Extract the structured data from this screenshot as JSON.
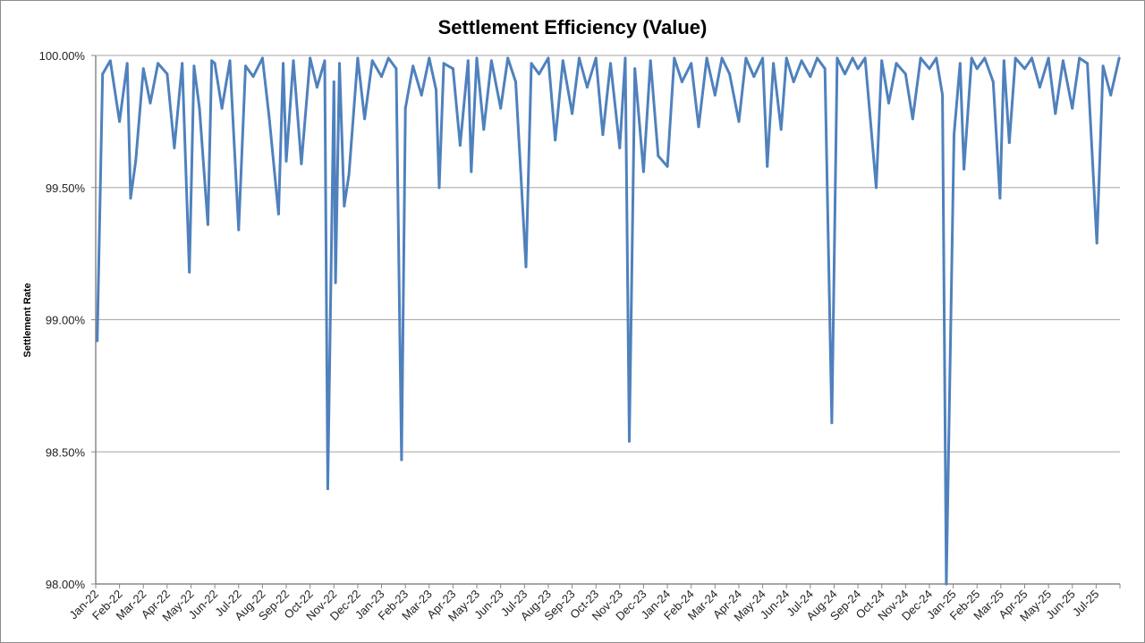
{
  "chart_data": {
    "type": "line",
    "title": "Settlement Efficiency (Value)",
    "xlabel": "",
    "ylabel": "Settlement Rate",
    "ylim": [
      98.0,
      100.0
    ],
    "yticks": [
      "98.00%",
      "98.50%",
      "99.00%",
      "99.50%",
      "100.00%"
    ],
    "ytick_values": [
      98.0,
      98.5,
      99.0,
      99.5,
      100.0
    ],
    "xticks": [
      "Jan-22",
      "Feb-22",
      "Mar-22",
      "Apr-22",
      "May-22",
      "Jun-22",
      "Jul-22",
      "Aug-22",
      "Sep-22",
      "Oct-22",
      "Nov-22",
      "Dec-22",
      "Jan-23",
      "Feb-23",
      "Mar-23",
      "Apr-23",
      "May-23",
      "Jun-23",
      "Jul-23",
      "Aug-23",
      "Sep-23",
      "Oct-23",
      "Nov-23",
      "Dec-23",
      "Jan-24",
      "Feb-24",
      "Mar-24",
      "Apr-24",
      "May-24",
      "Jun-24",
      "Jul-24",
      "Aug-24",
      "Sep-24",
      "Oct-24",
      "Nov-24",
      "Dec-24",
      "Jan-25",
      "Feb-25",
      "Mar-25",
      "Apr-25",
      "May-25",
      "Jun-25",
      "Jul-25"
    ],
    "xlim": [
      "2022-01-01",
      "2025-08-01"
    ],
    "grid": "horizontal",
    "legend": "none",
    "line_color": "#4f81bd",
    "grid_color": "#a6a6a6",
    "series": [
      {
        "points": [
          [
            "2022-01-03",
            98.92
          ],
          [
            "2022-01-10",
            99.93
          ],
          [
            "2022-01-20",
            99.98
          ],
          [
            "2022-02-01",
            99.75
          ],
          [
            "2022-02-10",
            99.97
          ],
          [
            "2022-02-14",
            99.46
          ],
          [
            "2022-02-20",
            99.6
          ],
          [
            "2022-03-01",
            99.95
          ],
          [
            "2022-03-10",
            99.82
          ],
          [
            "2022-03-20",
            99.97
          ],
          [
            "2022-04-01",
            99.93
          ],
          [
            "2022-04-10",
            99.65
          ],
          [
            "2022-04-20",
            99.97
          ],
          [
            "2022-04-29",
            99.18
          ],
          [
            "2022-05-05",
            99.96
          ],
          [
            "2022-05-12",
            99.8
          ],
          [
            "2022-05-23",
            99.36
          ],
          [
            "2022-05-28",
            99.98
          ],
          [
            "2022-06-01",
            99.97
          ],
          [
            "2022-06-10",
            99.8
          ],
          [
            "2022-06-20",
            99.98
          ],
          [
            "2022-07-01",
            99.34
          ],
          [
            "2022-07-10",
            99.96
          ],
          [
            "2022-07-20",
            99.92
          ],
          [
            "2022-08-01",
            99.99
          ],
          [
            "2022-08-10",
            99.76
          ],
          [
            "2022-08-22",
            99.4
          ],
          [
            "2022-08-28",
            99.97
          ],
          [
            "2022-09-01",
            99.6
          ],
          [
            "2022-09-10",
            99.98
          ],
          [
            "2022-09-20",
            99.59
          ],
          [
            "2022-10-01",
            99.99
          ],
          [
            "2022-10-10",
            99.88
          ],
          [
            "2022-10-20",
            99.98
          ],
          [
            "2022-10-24",
            98.36
          ],
          [
            "2022-11-01",
            99.9
          ],
          [
            "2022-11-03",
            99.14
          ],
          [
            "2022-11-08",
            99.97
          ],
          [
            "2022-11-14",
            99.43
          ],
          [
            "2022-11-20",
            99.55
          ],
          [
            "2022-12-01",
            99.99
          ],
          [
            "2022-12-10",
            99.76
          ],
          [
            "2022-12-20",
            99.98
          ],
          [
            "2023-01-01",
            99.92
          ],
          [
            "2023-01-10",
            99.99
          ],
          [
            "2023-01-20",
            99.95
          ],
          [
            "2023-01-27",
            98.47
          ],
          [
            "2023-02-01",
            99.8
          ],
          [
            "2023-02-10",
            99.96
          ],
          [
            "2023-02-20",
            99.85
          ],
          [
            "2023-03-01",
            99.99
          ],
          [
            "2023-03-10",
            99.87
          ],
          [
            "2023-03-14",
            99.5
          ],
          [
            "2023-03-20",
            99.97
          ],
          [
            "2023-04-01",
            99.95
          ],
          [
            "2023-04-10",
            99.66
          ],
          [
            "2023-04-20",
            99.98
          ],
          [
            "2023-04-24",
            99.56
          ],
          [
            "2023-05-01",
            99.99
          ],
          [
            "2023-05-10",
            99.72
          ],
          [
            "2023-05-20",
            99.98
          ],
          [
            "2023-06-01",
            99.8
          ],
          [
            "2023-06-10",
            99.99
          ],
          [
            "2023-06-20",
            99.9
          ],
          [
            "2023-07-03",
            99.2
          ],
          [
            "2023-07-10",
            99.97
          ],
          [
            "2023-07-20",
            99.93
          ],
          [
            "2023-08-01",
            99.99
          ],
          [
            "2023-08-10",
            99.68
          ],
          [
            "2023-08-20",
            99.98
          ],
          [
            "2023-09-01",
            99.78
          ],
          [
            "2023-09-10",
            99.99
          ],
          [
            "2023-09-20",
            99.88
          ],
          [
            "2023-10-01",
            99.99
          ],
          [
            "2023-10-10",
            99.7
          ],
          [
            "2023-10-20",
            99.97
          ],
          [
            "2023-11-01",
            99.65
          ],
          [
            "2023-11-08",
            99.99
          ],
          [
            "2023-11-13",
            98.54
          ],
          [
            "2023-11-20",
            99.95
          ],
          [
            "2023-12-01",
            99.56
          ],
          [
            "2023-12-10",
            99.98
          ],
          [
            "2023-12-20",
            99.62
          ],
          [
            "2024-01-01",
            99.58
          ],
          [
            "2024-01-10",
            99.99
          ],
          [
            "2024-01-20",
            99.9
          ],
          [
            "2024-02-01",
            99.97
          ],
          [
            "2024-02-10",
            99.73
          ],
          [
            "2024-02-20",
            99.99
          ],
          [
            "2024-03-01",
            99.85
          ],
          [
            "2024-03-10",
            99.99
          ],
          [
            "2024-03-20",
            99.93
          ],
          [
            "2024-04-01",
            99.75
          ],
          [
            "2024-04-10",
            99.99
          ],
          [
            "2024-04-20",
            99.92
          ],
          [
            "2024-05-01",
            99.99
          ],
          [
            "2024-05-07",
            99.58
          ],
          [
            "2024-05-15",
            99.97
          ],
          [
            "2024-05-25",
            99.72
          ],
          [
            "2024-06-01",
            99.99
          ],
          [
            "2024-06-10",
            99.9
          ],
          [
            "2024-06-20",
            99.98
          ],
          [
            "2024-07-01",
            99.92
          ],
          [
            "2024-07-10",
            99.99
          ],
          [
            "2024-07-20",
            99.95
          ],
          [
            "2024-07-29",
            98.61
          ],
          [
            "2024-08-05",
            99.99
          ],
          [
            "2024-08-15",
            99.93
          ],
          [
            "2024-08-25",
            99.99
          ],
          [
            "2024-09-01",
            99.95
          ],
          [
            "2024-09-10",
            99.99
          ],
          [
            "2024-09-24",
            99.5
          ],
          [
            "2024-10-01",
            99.98
          ],
          [
            "2024-10-10",
            99.82
          ],
          [
            "2024-10-20",
            99.97
          ],
          [
            "2024-11-01",
            99.93
          ],
          [
            "2024-11-10",
            99.76
          ],
          [
            "2024-11-20",
            99.99
          ],
          [
            "2024-12-01",
            99.95
          ],
          [
            "2024-12-10",
            99.99
          ],
          [
            "2024-12-18",
            99.85
          ],
          [
            "2024-12-23",
            98.0
          ],
          [
            "2025-01-02",
            99.7
          ],
          [
            "2025-01-10",
            99.97
          ],
          [
            "2025-01-15",
            99.57
          ],
          [
            "2025-01-25",
            99.99
          ],
          [
            "2025-02-01",
            99.95
          ],
          [
            "2025-02-10",
            99.99
          ],
          [
            "2025-02-20",
            99.9
          ],
          [
            "2025-02-28",
            99.46
          ],
          [
            "2025-03-05",
            99.98
          ],
          [
            "2025-03-12",
            99.67
          ],
          [
            "2025-03-20",
            99.99
          ],
          [
            "2025-04-01",
            99.95
          ],
          [
            "2025-04-10",
            99.99
          ],
          [
            "2025-04-20",
            99.88
          ],
          [
            "2025-05-01",
            99.99
          ],
          [
            "2025-05-10",
            99.78
          ],
          [
            "2025-05-20",
            99.98
          ],
          [
            "2025-06-01",
            99.8
          ],
          [
            "2025-06-10",
            99.99
          ],
          [
            "2025-06-20",
            99.97
          ],
          [
            "2025-07-02",
            99.29
          ],
          [
            "2025-07-10",
            99.96
          ],
          [
            "2025-07-20",
            99.85
          ],
          [
            "2025-07-31",
            99.99
          ]
        ]
      }
    ]
  }
}
